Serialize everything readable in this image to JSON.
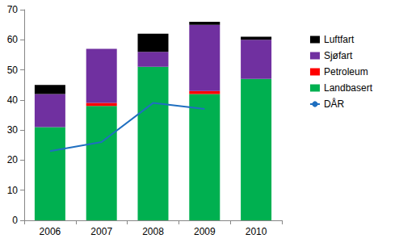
{
  "chart_data": {
    "type": "bar",
    "categories": [
      "2006",
      "2007",
      "2008",
      "2009",
      "2010"
    ],
    "series": [
      {
        "name": "Landbasert",
        "type": "bar",
        "color": "#00b050",
        "values": [
          31,
          38,
          51,
          42,
          47
        ]
      },
      {
        "name": "Petroleum",
        "type": "bar",
        "color": "#ff0000",
        "values": [
          0,
          1,
          0,
          1,
          0
        ]
      },
      {
        "name": "Sjøfart",
        "type": "bar",
        "color": "#7030a0",
        "values": [
          11,
          18,
          5,
          22,
          13
        ]
      },
      {
        "name": "Luftfart",
        "type": "bar",
        "color": "#000000",
        "values": [
          3,
          0,
          6,
          1,
          1
        ]
      },
      {
        "name": "DÅR",
        "type": "line",
        "color": "#1f6fc0",
        "values": [
          23,
          26,
          39,
          37,
          null
        ]
      }
    ],
    "ylim": [
      0,
      70
    ],
    "yticks": [
      0,
      10,
      20,
      30,
      40,
      50,
      60,
      70
    ],
    "stacked": true,
    "grid": false,
    "legend": "right"
  }
}
